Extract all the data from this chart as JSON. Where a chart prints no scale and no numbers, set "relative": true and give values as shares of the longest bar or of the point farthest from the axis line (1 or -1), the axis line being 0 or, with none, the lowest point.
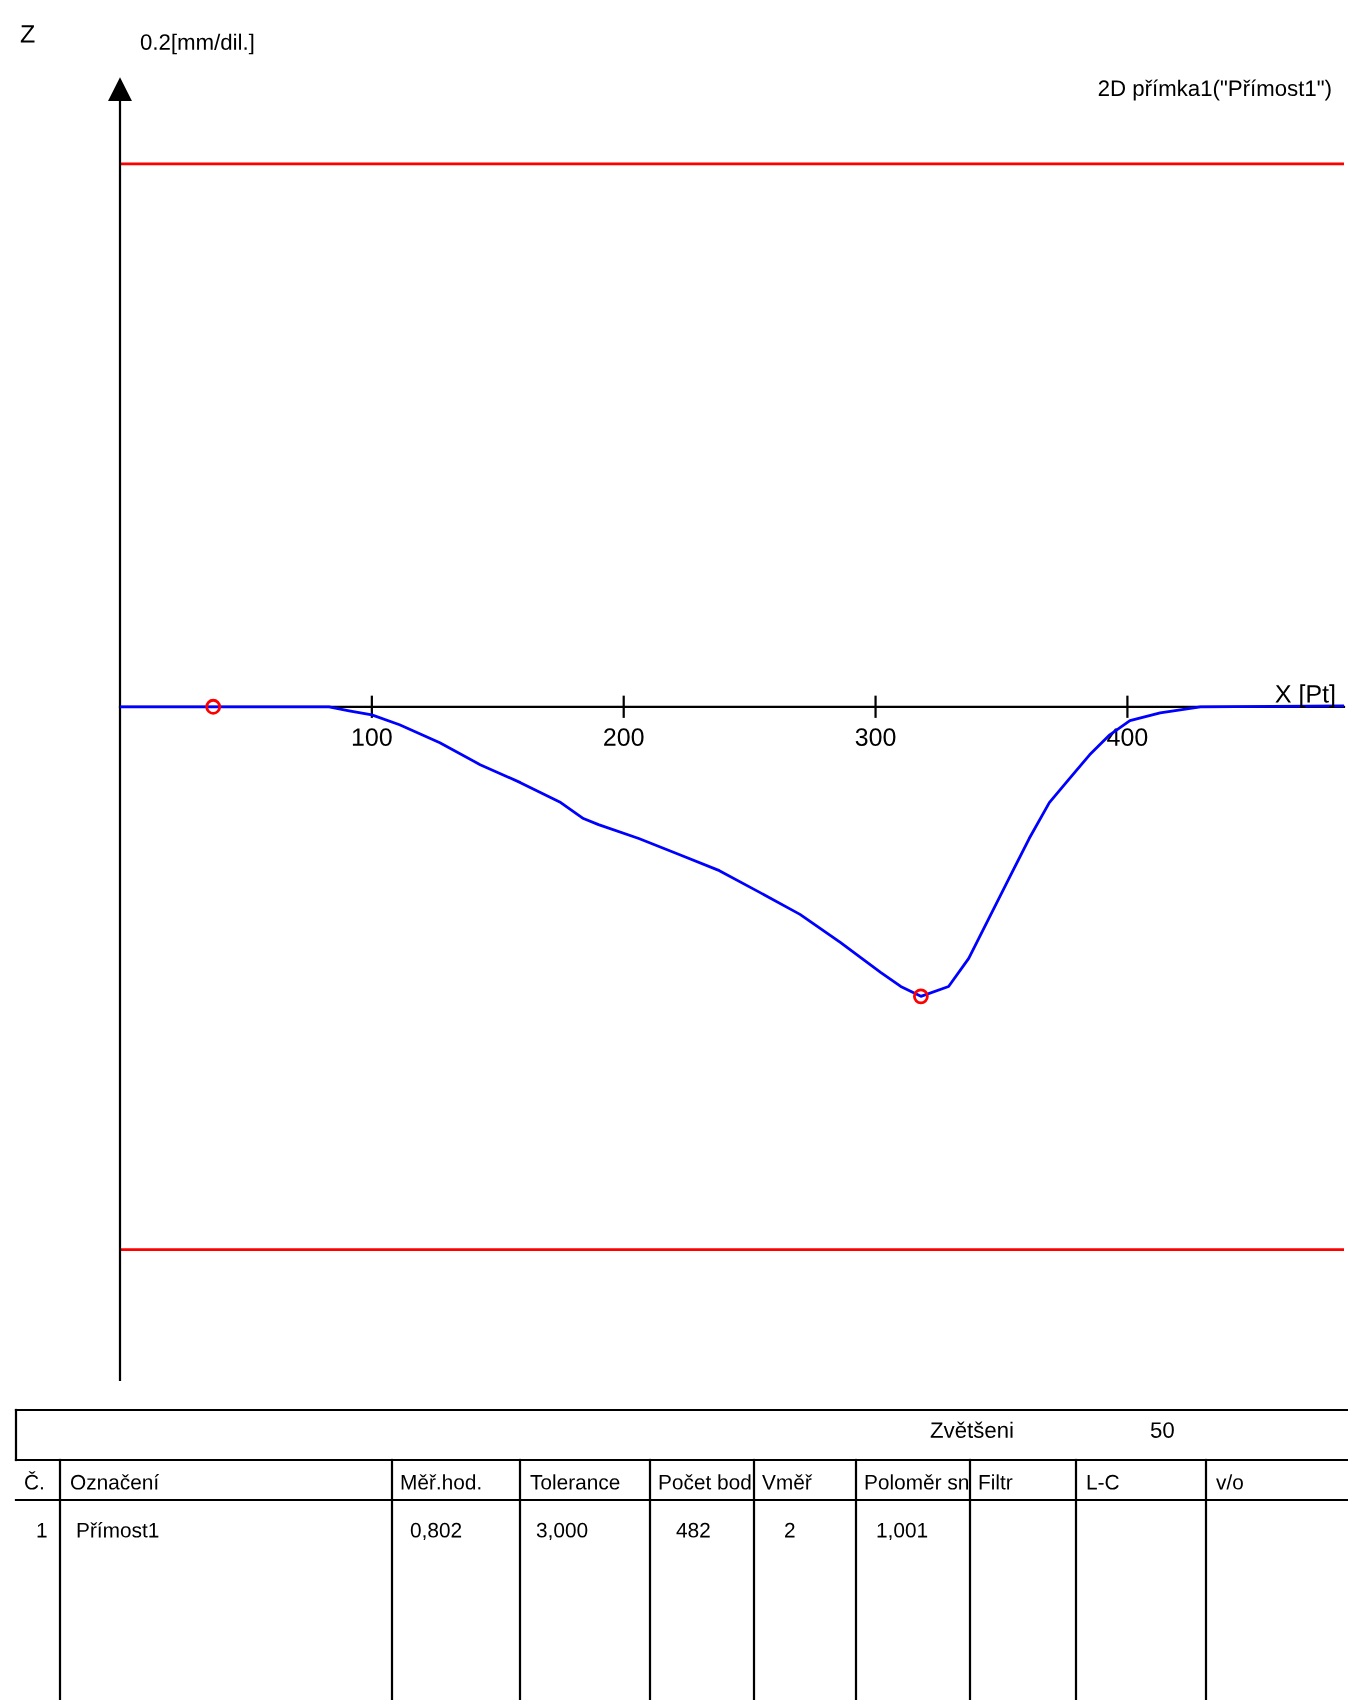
{
  "chart_data": {
    "type": "line",
    "title": "2D přímka1(\"Přímost1\")",
    "xlabel": "X [Pt]",
    "relative": true,
    "xlim": [
      0,
      486
    ],
    "xticks": [
      100,
      200,
      300,
      400
    ],
    "grid": false,
    "legend": false,
    "series": [
      {
        "color": "#0000ff",
        "marker": "none",
        "x": [
          0,
          83,
          91,
          100,
          111,
          127,
          143,
          159,
          175,
          184,
          190,
          206,
          222,
          238,
          254,
          270,
          286,
          302,
          310,
          318,
          329,
          337,
          345,
          353,
          361,
          369,
          377,
          385,
          393,
          401,
          413,
          429,
          486
        ],
        "values": [
          0,
          0,
          -0.014,
          -0.028,
          -0.062,
          -0.124,
          -0.2,
          -0.262,
          -0.331,
          -0.386,
          -0.407,
          -0.455,
          -0.51,
          -0.566,
          -0.641,
          -0.717,
          -0.814,
          -0.917,
          -0.966,
          -1,
          -0.966,
          -0.869,
          -0.731,
          -0.593,
          -0.455,
          -0.331,
          -0.248,
          -0.166,
          -0.097,
          -0.048,
          -0.021,
          0,
          0.003
        ]
      },
      {
        "type": "scatter",
        "color": "#ff0000",
        "marker": "circle",
        "x": [
          37,
          318
        ],
        "values": [
          0,
          -1
        ]
      }
    ],
    "ref_lines": [
      {
        "axis": "y",
        "value": 1.875,
        "color": "#ff0000"
      },
      {
        "axis": "y",
        "value": -1.875,
        "color": "#ff0000"
      }
    ],
    "annotations": [
      "Z",
      "0.2[mm/dil.]",
      "Zvětšeni",
      "50",
      "Č.",
      "Označení",
      "Měř.hod.",
      "Tolerance",
      "Počet bod",
      "Vměř",
      "Poloměr sn",
      "Filtr",
      "L-C",
      "v/o",
      "1",
      "Přímost1",
      "0,802",
      "3,000",
      "482",
      "2",
      "1,001"
    ]
  }
}
